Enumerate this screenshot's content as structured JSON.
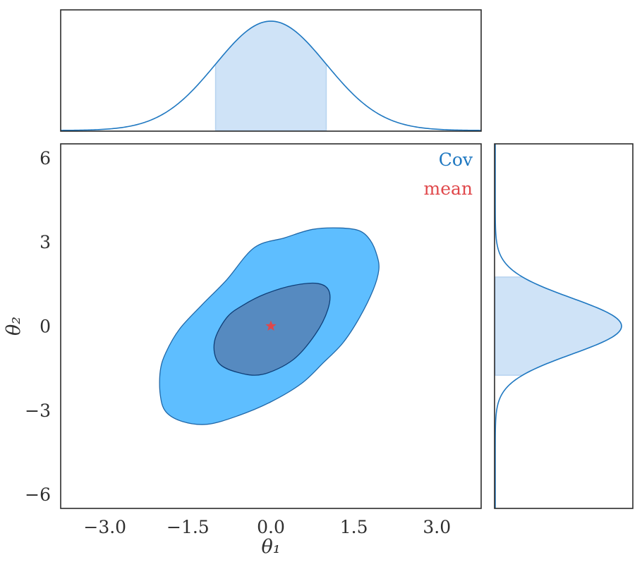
{
  "chart_data": {
    "type": "corner",
    "xlabel": "θ₁",
    "ylabel": "θ₂",
    "xlim": [
      -3.8,
      3.8
    ],
    "ylim": [
      -6.5,
      6.5
    ],
    "x_ticks": [
      -3.0,
      -1.5,
      0.0,
      1.5,
      3.0
    ],
    "x_tick_labels": [
      "−3.0",
      "−1.5",
      "0.0",
      "1.5",
      "3.0"
    ],
    "y_ticks": [
      6,
      3,
      0,
      -3,
      -6
    ],
    "y_tick_labels": [
      "6",
      "3",
      "0",
      "−3",
      "−6"
    ],
    "grid": false,
    "legend": {
      "placement": "top-right",
      "entries": [
        {
          "name": "Cov",
          "color": "#1f78c1"
        },
        {
          "name": "mean",
          "color": "#e0484b"
        }
      ]
    },
    "colors": {
      "outer_contour": "#5ebeff",
      "inner_contour": "#568ac0",
      "contour_edge": "#1f67a8",
      "inner_edge": "#0f3f78",
      "marginal_line": "#1f78c1",
      "marginal_fill": "#cfe3f7",
      "mean_marker": "#e0484b",
      "frame": "#2b2b2b"
    },
    "mean": {
      "x": 0.0,
      "y": 0.0
    },
    "contours": [
      {
        "level": "outer",
        "points": [
          [
            -0.3,
            2.8
          ],
          [
            0.25,
            3.15
          ],
          [
            0.75,
            3.45
          ],
          [
            1.25,
            3.5
          ],
          [
            1.6,
            3.4
          ],
          [
            1.8,
            3.05
          ],
          [
            1.92,
            2.5
          ],
          [
            1.95,
            2.0
          ],
          [
            1.85,
            1.3
          ],
          [
            1.6,
            0.3
          ],
          [
            1.3,
            -0.6
          ],
          [
            0.95,
            -1.3
          ],
          [
            0.55,
            -2.05
          ],
          [
            0.0,
            -2.7
          ],
          [
            -0.6,
            -3.2
          ],
          [
            -1.15,
            -3.5
          ],
          [
            -1.6,
            -3.4
          ],
          [
            -1.9,
            -3.05
          ],
          [
            -2.0,
            -2.45
          ],
          [
            -2.0,
            -1.6
          ],
          [
            -1.9,
            -0.95
          ],
          [
            -1.65,
            -0.1
          ],
          [
            -1.25,
            0.75
          ],
          [
            -0.8,
            1.65
          ]
        ]
      },
      {
        "level": "inner",
        "points": [
          [
            -0.1,
            1.15
          ],
          [
            0.4,
            1.45
          ],
          [
            0.85,
            1.52
          ],
          [
            1.05,
            1.25
          ],
          [
            1.03,
            0.6
          ],
          [
            0.8,
            -0.3
          ],
          [
            0.4,
            -1.2
          ],
          [
            -0.15,
            -1.72
          ],
          [
            -0.6,
            -1.65
          ],
          [
            -0.95,
            -1.3
          ],
          [
            -1.02,
            -0.55
          ],
          [
            -0.8,
            0.3
          ],
          [
            -0.5,
            0.75
          ]
        ]
      }
    ],
    "marginal_x": {
      "distribution": "normal",
      "mean": 0.0,
      "std": 1.0,
      "shaded_interval": [
        -1.0,
        1.0
      ]
    },
    "marginal_y": {
      "distribution": "normal",
      "mean": 0.0,
      "std": 1.0,
      "shaded_interval": [
        -1.75,
        1.75
      ]
    }
  }
}
